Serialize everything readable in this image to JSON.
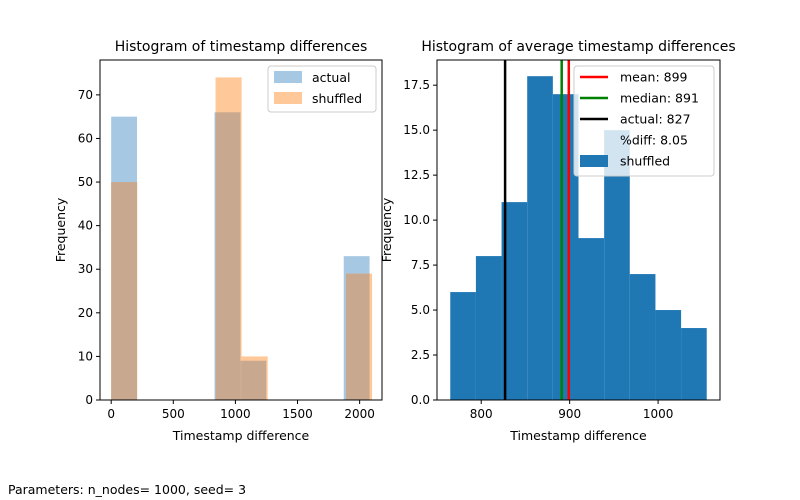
{
  "footer": "Parameters: n_nodes= 1000, seed= 3",
  "chart_data": [
    {
      "type": "bar",
      "title": "Histogram of timestamp differences",
      "xlabel": "Timestamp difference",
      "ylabel": "Frequency",
      "xlim": [
        -90,
        2180
      ],
      "ylim": [
        0,
        78
      ],
      "xticks": [
        0,
        500,
        1000,
        1500,
        2000
      ],
      "yticks": [
        0,
        10,
        20,
        30,
        40,
        50,
        60,
        70
      ],
      "grid": false,
      "legend_position": "top-right",
      "series": [
        {
          "name": "actual",
          "color": "#a6c8e2",
          "bins": [
            {
              "x0": 0,
              "x1": 208,
              "value": 65
            },
            {
              "x0": 208,
              "x1": 416,
              "value": 0
            },
            {
              "x0": 416,
              "x1": 624,
              "value": 0
            },
            {
              "x0": 624,
              "x1": 832,
              "value": 0
            },
            {
              "x0": 832,
              "x1": 1040,
              "value": 66
            },
            {
              "x0": 1040,
              "x1": 1248,
              "value": 9
            },
            {
              "x0": 1248,
              "x1": 1456,
              "value": 0
            },
            {
              "x0": 1456,
              "x1": 1664,
              "value": 0
            },
            {
              "x0": 1664,
              "x1": 1872,
              "value": 0
            },
            {
              "x0": 1872,
              "x1": 2080,
              "value": 33
            }
          ]
        },
        {
          "name": "shuffled",
          "color": "#ffc898",
          "bins": [
            {
              "x0": 0,
              "x1": 210,
              "value": 50
            },
            {
              "x0": 210,
              "x1": 420,
              "value": 0
            },
            {
              "x0": 420,
              "x1": 630,
              "value": 0
            },
            {
              "x0": 630,
              "x1": 840,
              "value": 0
            },
            {
              "x0": 840,
              "x1": 1050,
              "value": 74
            },
            {
              "x0": 1050,
              "x1": 1260,
              "value": 10
            },
            {
              "x0": 1260,
              "x1": 1470,
              "value": 0
            },
            {
              "x0": 1470,
              "x1": 1680,
              "value": 0
            },
            {
              "x0": 1680,
              "x1": 1890,
              "value": 0
            },
            {
              "x0": 1890,
              "x1": 2100,
              "value": 29
            }
          ]
        }
      ],
      "overlap_color": "#c8a990"
    },
    {
      "type": "bar",
      "title": "Histogram of average timestamp differences",
      "xlabel": "Timestamp difference",
      "ylabel": "Frequency",
      "xlim": [
        750,
        1070
      ],
      "ylim": [
        0,
        18.9
      ],
      "xticks": [
        800,
        900,
        1000
      ],
      "yticks": [
        0.0,
        2.5,
        5.0,
        7.5,
        10.0,
        12.5,
        15.0,
        17.5
      ],
      "ytick_labels": [
        "0.0",
        "2.5",
        "5.0",
        "7.5",
        "10.0",
        "12.5",
        "15.0",
        "17.5"
      ],
      "grid": false,
      "legend_position": "top-right",
      "series": [
        {
          "name": "shuffled",
          "color": "#1f77b4",
          "bins": [
            {
              "x0": 765,
              "x1": 794,
              "value": 6
            },
            {
              "x0": 794,
              "x1": 823,
              "value": 8
            },
            {
              "x0": 823,
              "x1": 852,
              "value": 11
            },
            {
              "x0": 852,
              "x1": 881,
              "value": 18
            },
            {
              "x0": 881,
              "x1": 910,
              "value": 17
            },
            {
              "x0": 910,
              "x1": 939,
              "value": 9
            },
            {
              "x0": 939,
              "x1": 968,
              "value": 15
            },
            {
              "x0": 968,
              "x1": 997,
              "value": 7
            },
            {
              "x0": 997,
              "x1": 1026,
              "value": 5
            },
            {
              "x0": 1026,
              "x1": 1055,
              "value": 4
            }
          ]
        }
      ],
      "vlines": [
        {
          "label": "mean: 899",
          "x": 899,
          "color": "#ff0000"
        },
        {
          "label": "median: 891",
          "x": 891,
          "color": "#008000"
        },
        {
          "label": "actual: 827",
          "x": 827,
          "color": "#000000"
        }
      ],
      "legend_extra": "%diff: 8.05"
    }
  ]
}
